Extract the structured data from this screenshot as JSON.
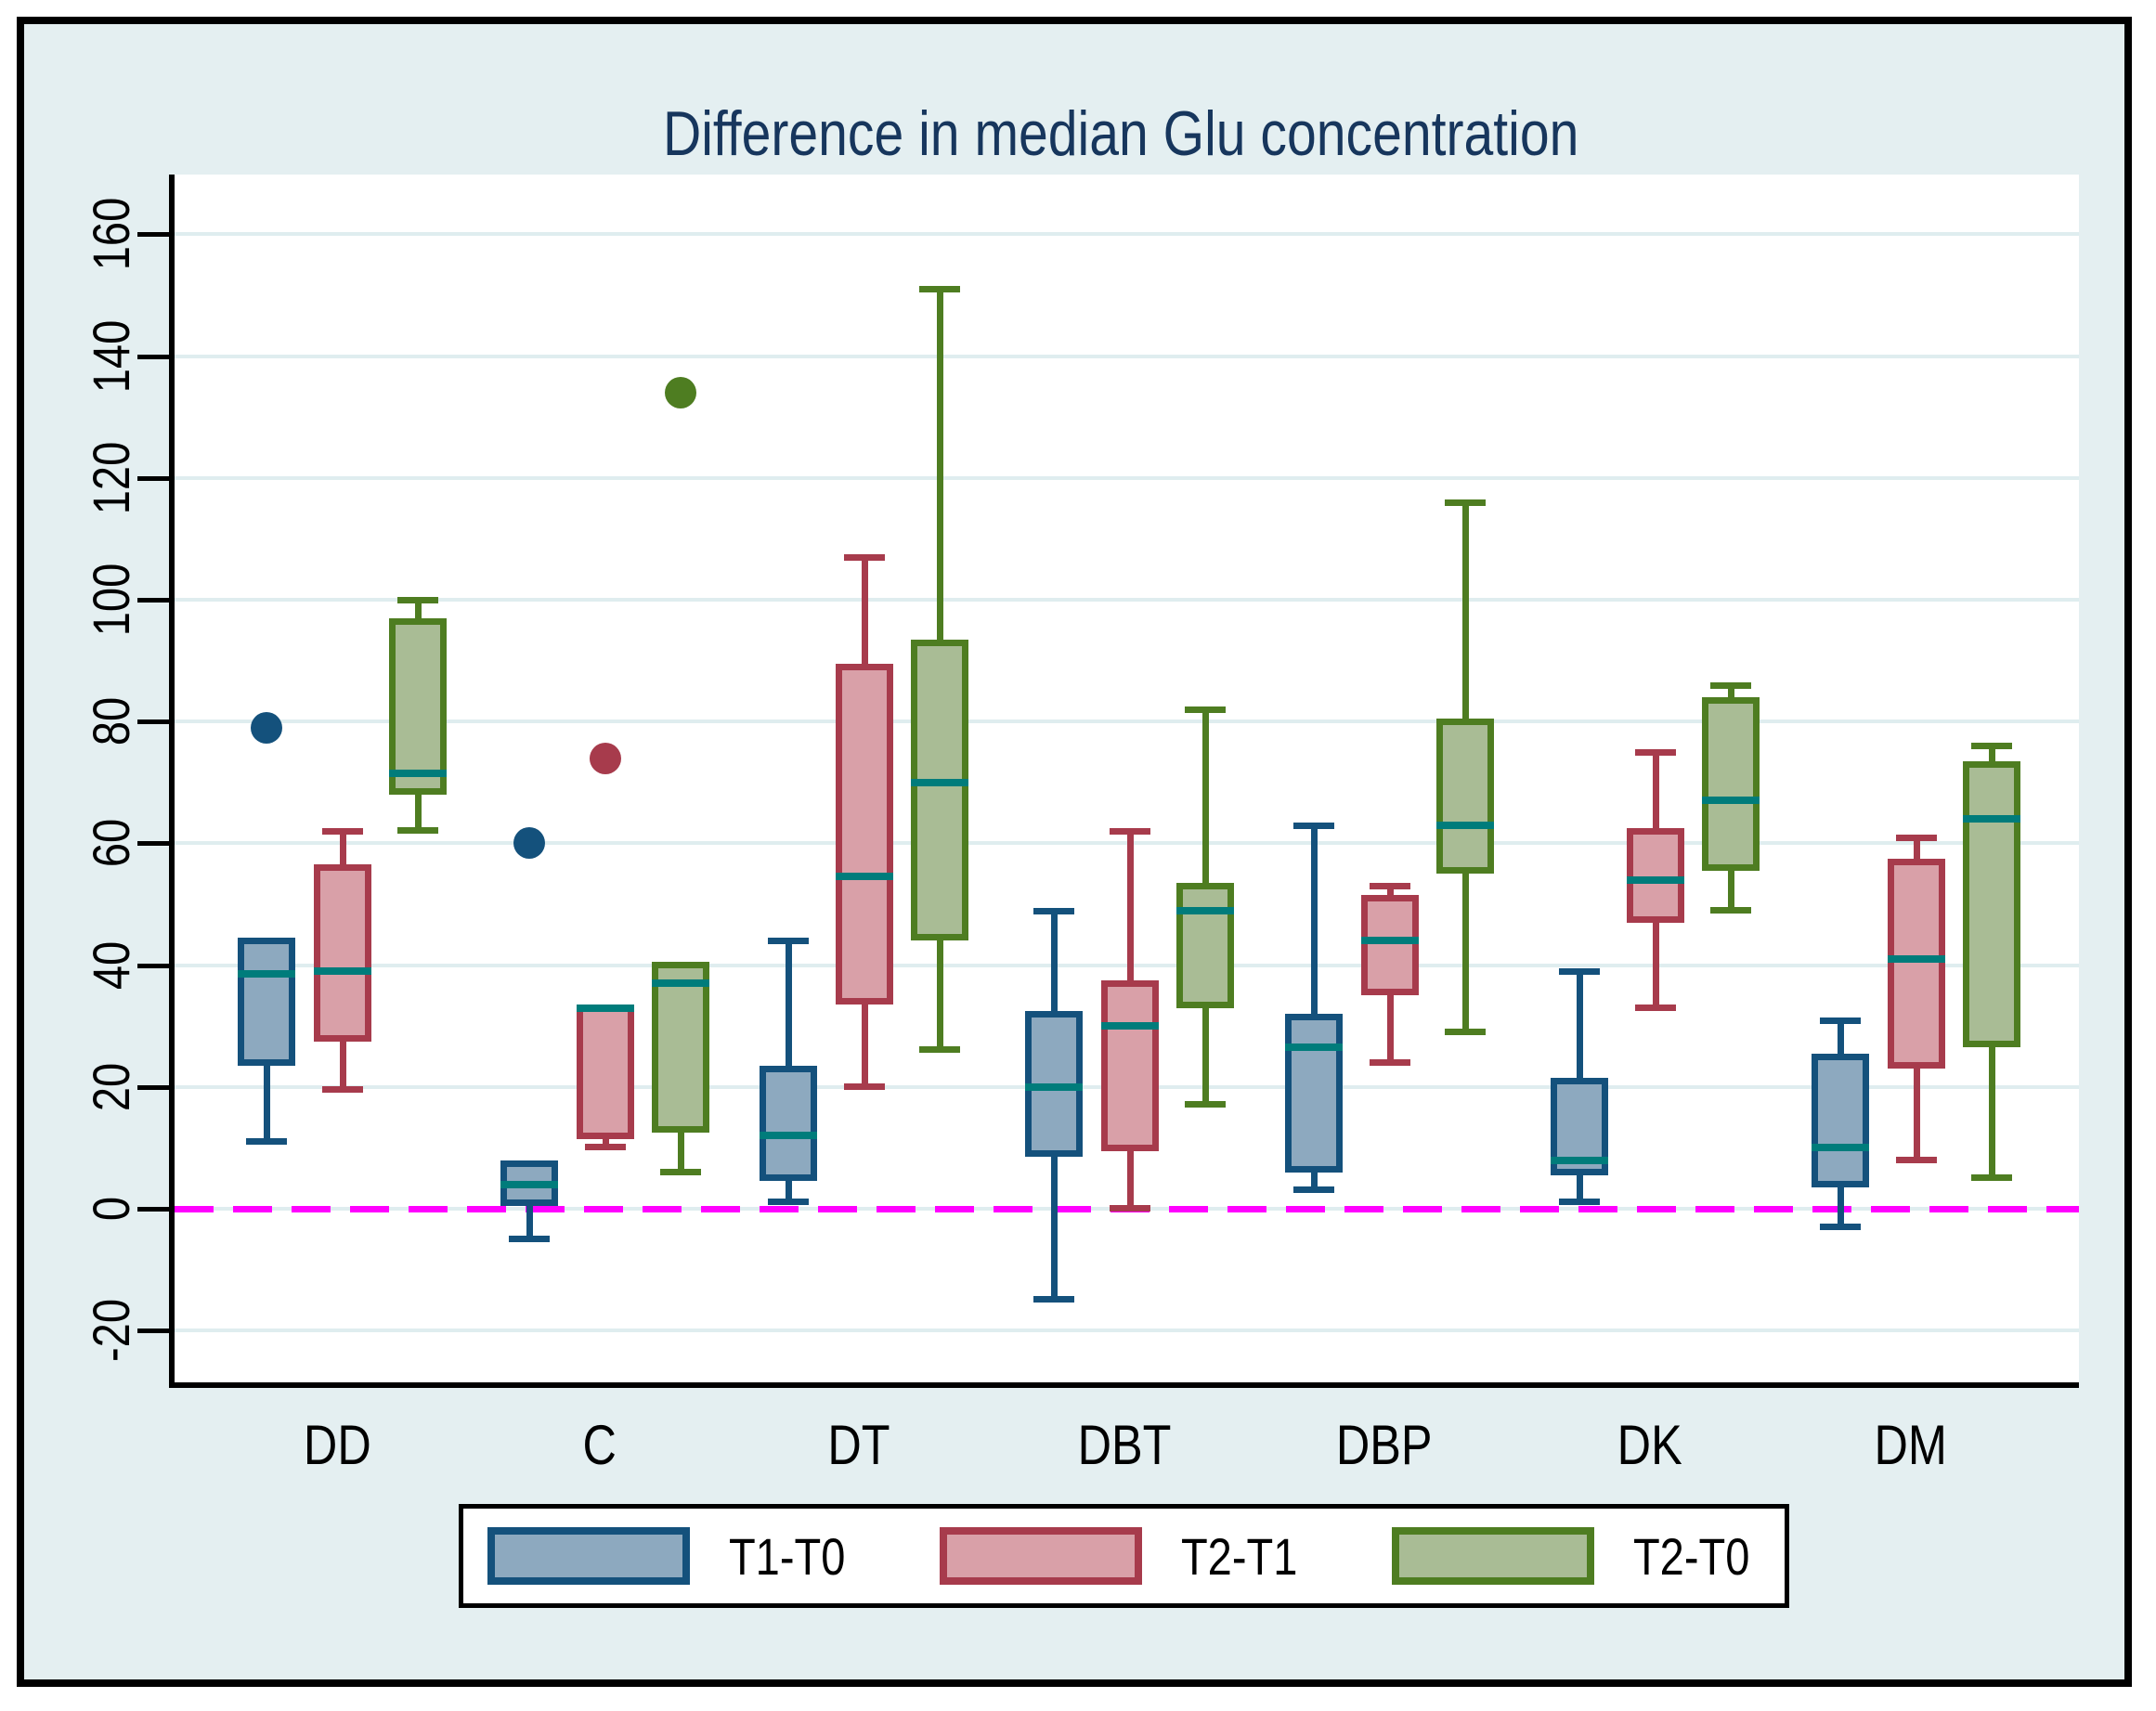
{
  "chart_data": {
    "type": "grouped_boxplot",
    "title": "Difference in median Glu concentration",
    "categories": [
      "DD",
      "C",
      "DT",
      "DBT",
      "DBP",
      "DK",
      "DM"
    ],
    "y_ticks": [
      160,
      140,
      120,
      100,
      80,
      60,
      40,
      20,
      0,
      -20
    ],
    "ylim": [
      -28,
      170
    ],
    "grid": true,
    "legend_position": "bottom",
    "reference_line_value": 0,
    "reference_line_color": "#ff00ff",
    "median_color": "#007c7b",
    "background_color": "#e4eff1",
    "plot_background_color": "#ffffff",
    "title_color": "#17365d",
    "series": [
      {
        "name": "T1-T0",
        "border_color": "#14517c",
        "fill_color": "#8da9bf",
        "boxes": [
          {
            "group": "DD",
            "min": 11,
            "q1": 23.5,
            "median": 38.5,
            "q3": 44.5,
            "max": 44.5
          },
          {
            "group": "C",
            "min": -5,
            "q1": 0.5,
            "median": 4,
            "q3": 8,
            "max": 8
          },
          {
            "group": "DT",
            "min": 1,
            "q1": 4.5,
            "median": 12,
            "q3": 23.5,
            "max": 44
          },
          {
            "group": "DBT",
            "min": -15,
            "q1": 8.5,
            "median": 20,
            "q3": 32.5,
            "max": 49
          },
          {
            "group": "DBP",
            "min": 3,
            "q1": 6,
            "median": 26.5,
            "q3": 32,
            "max": 63
          },
          {
            "group": "DK",
            "min": 1,
            "q1": 5.5,
            "median": 8,
            "q3": 21.5,
            "max": 39
          },
          {
            "group": "DM",
            "min": -3,
            "q1": 3.5,
            "median": 10,
            "q3": 25.5,
            "max": 31
          }
        ],
        "outliers": [
          {
            "group": "DD",
            "value": 79
          },
          {
            "group": "C",
            "value": 60
          }
        ]
      },
      {
        "name": "T2-T1",
        "border_color": "#a73b4c",
        "fill_color": "#d9a0a8",
        "boxes": [
          {
            "group": "DD",
            "min": 19.5,
            "q1": 27.5,
            "median": 39,
            "q3": 56.5,
            "max": 62
          },
          {
            "group": "C",
            "min": 10,
            "q1": 11.5,
            "median": 33,
            "q3": 33.5,
            "max": 33.5
          },
          {
            "group": "DT",
            "min": 20,
            "q1": 33.5,
            "median": 54.5,
            "q3": 89.5,
            "max": 107
          },
          {
            "group": "DBT",
            "min": 0,
            "q1": 9.5,
            "median": 30,
            "q3": 37.5,
            "max": 62
          },
          {
            "group": "DBP",
            "min": 24,
            "q1": 35,
            "median": 44,
            "q3": 51.5,
            "max": 53
          },
          {
            "group": "DK",
            "min": 33,
            "q1": 47,
            "median": 54,
            "q3": 62.5,
            "max": 75
          },
          {
            "group": "DM",
            "min": 8,
            "q1": 23,
            "median": 41,
            "q3": 57.5,
            "max": 61
          }
        ],
        "outliers": [
          {
            "group": "C",
            "value": 74
          }
        ]
      },
      {
        "name": "T2-T0",
        "border_color": "#4e7d21",
        "fill_color": "#a9bc95",
        "boxes": [
          {
            "group": "DD",
            "min": 62,
            "q1": 68,
            "median": 71.5,
            "q3": 97,
            "max": 100
          },
          {
            "group": "C",
            "min": 6,
            "q1": 12.5,
            "median": 37,
            "q3": 40.5,
            "max": 40.5
          },
          {
            "group": "DT",
            "min": 26,
            "q1": 44,
            "median": 70,
            "q3": 93.5,
            "max": 151
          },
          {
            "group": "DBT",
            "min": 17,
            "q1": 33,
            "median": 49,
            "q3": 53.5,
            "max": 82
          },
          {
            "group": "DBP",
            "min": 29,
            "q1": 55,
            "median": 63,
            "q3": 80.5,
            "max": 116
          },
          {
            "group": "DK",
            "min": 49,
            "q1": 55.5,
            "median": 67,
            "q3": 84,
            "max": 86
          },
          {
            "group": "DM",
            "min": 5,
            "q1": 26.5,
            "median": 64,
            "q3": 73.5,
            "max": 76
          }
        ],
        "outliers": [
          {
            "group": "C",
            "value": 134
          }
        ]
      }
    ]
  }
}
